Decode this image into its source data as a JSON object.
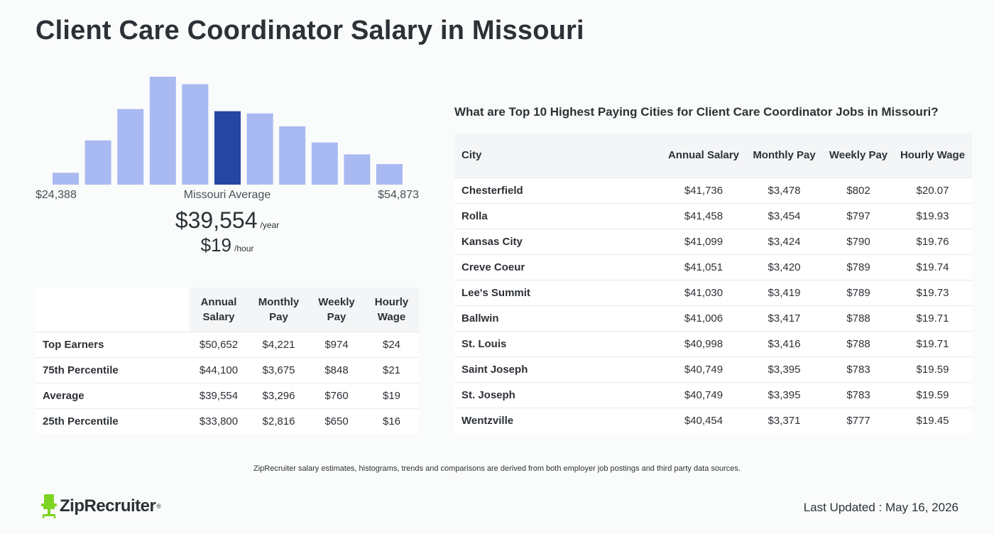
{
  "page": {
    "title": "Client Care Coordinator Salary in Missouri"
  },
  "histogram": {
    "min_label": "$24,388",
    "mid_label": "Missouri Average",
    "max_label": "$54,873",
    "colors": {
      "bar": "#a9b9f1",
      "highlight": "#2547a3"
    }
  },
  "chart_data": {
    "type": "bar",
    "categories": [
      "1",
      "2",
      "3",
      "4",
      "5",
      "6",
      "7",
      "8",
      "9",
      "10",
      "11"
    ],
    "values": [
      11,
      41,
      70,
      100,
      93,
      68,
      66,
      54,
      39,
      28,
      19
    ],
    "highlight_index": 5,
    "ylim": [
      0,
      100
    ]
  },
  "average": {
    "year_value": "$39,554",
    "year_unit": "/year",
    "hour_value": "$19",
    "hour_unit": "/hour"
  },
  "percentile_table": {
    "headers": [
      "Annual Salary",
      "Monthly Pay",
      "Weekly Pay",
      "Hourly Wage"
    ],
    "rows": [
      {
        "label": "Top Earners",
        "values": [
          "$50,652",
          "$4,221",
          "$974",
          "$24"
        ]
      },
      {
        "label": "75th Percentile",
        "values": [
          "$44,100",
          "$3,675",
          "$848",
          "$21"
        ]
      },
      {
        "label": "Average",
        "values": [
          "$39,554",
          "$3,296",
          "$760",
          "$19"
        ]
      },
      {
        "label": "25th Percentile",
        "values": [
          "$33,800",
          "$2,816",
          "$650",
          "$16"
        ]
      }
    ]
  },
  "cities": {
    "title": "What are Top 10 Highest Paying Cities for Client Care Coordinator Jobs in Missouri?",
    "headers": [
      "City",
      "Annual Salary",
      "Monthly Pay",
      "Weekly Pay",
      "Hourly Wage"
    ],
    "rows": [
      {
        "city": "Chesterfield",
        "values": [
          "$41,736",
          "$3,478",
          "$802",
          "$20.07"
        ]
      },
      {
        "city": "Rolla",
        "values": [
          "$41,458",
          "$3,454",
          "$797",
          "$19.93"
        ]
      },
      {
        "city": "Kansas City",
        "values": [
          "$41,099",
          "$3,424",
          "$790",
          "$19.76"
        ]
      },
      {
        "city": "Creve Coeur",
        "values": [
          "$41,051",
          "$3,420",
          "$789",
          "$19.74"
        ]
      },
      {
        "city": "Lee's Summit",
        "values": [
          "$41,030",
          "$3,419",
          "$789",
          "$19.73"
        ]
      },
      {
        "city": "Ballwin",
        "values": [
          "$41,006",
          "$3,417",
          "$788",
          "$19.71"
        ]
      },
      {
        "city": "St. Louis",
        "values": [
          "$40,998",
          "$3,416",
          "$788",
          "$19.71"
        ]
      },
      {
        "city": "Saint Joseph",
        "values": [
          "$40,749",
          "$3,395",
          "$783",
          "$19.59"
        ]
      },
      {
        "city": "St. Joseph",
        "values": [
          "$40,749",
          "$3,395",
          "$783",
          "$19.59"
        ]
      },
      {
        "city": "Wentzville",
        "values": [
          "$40,454",
          "$3,371",
          "$777",
          "$19.45"
        ]
      }
    ]
  },
  "footer": {
    "disclaimer": "ZipRecruiter salary estimates, histograms, trends and comparisons are derived from both employer job postings and third party data sources.",
    "logo_text": "ZipRecruiter",
    "logo_reg": "®",
    "logo_icon": "ziprecruiter-chair-icon",
    "logo_color": "#7ed321",
    "last_updated": "Last Updated : May 16, 2026"
  }
}
